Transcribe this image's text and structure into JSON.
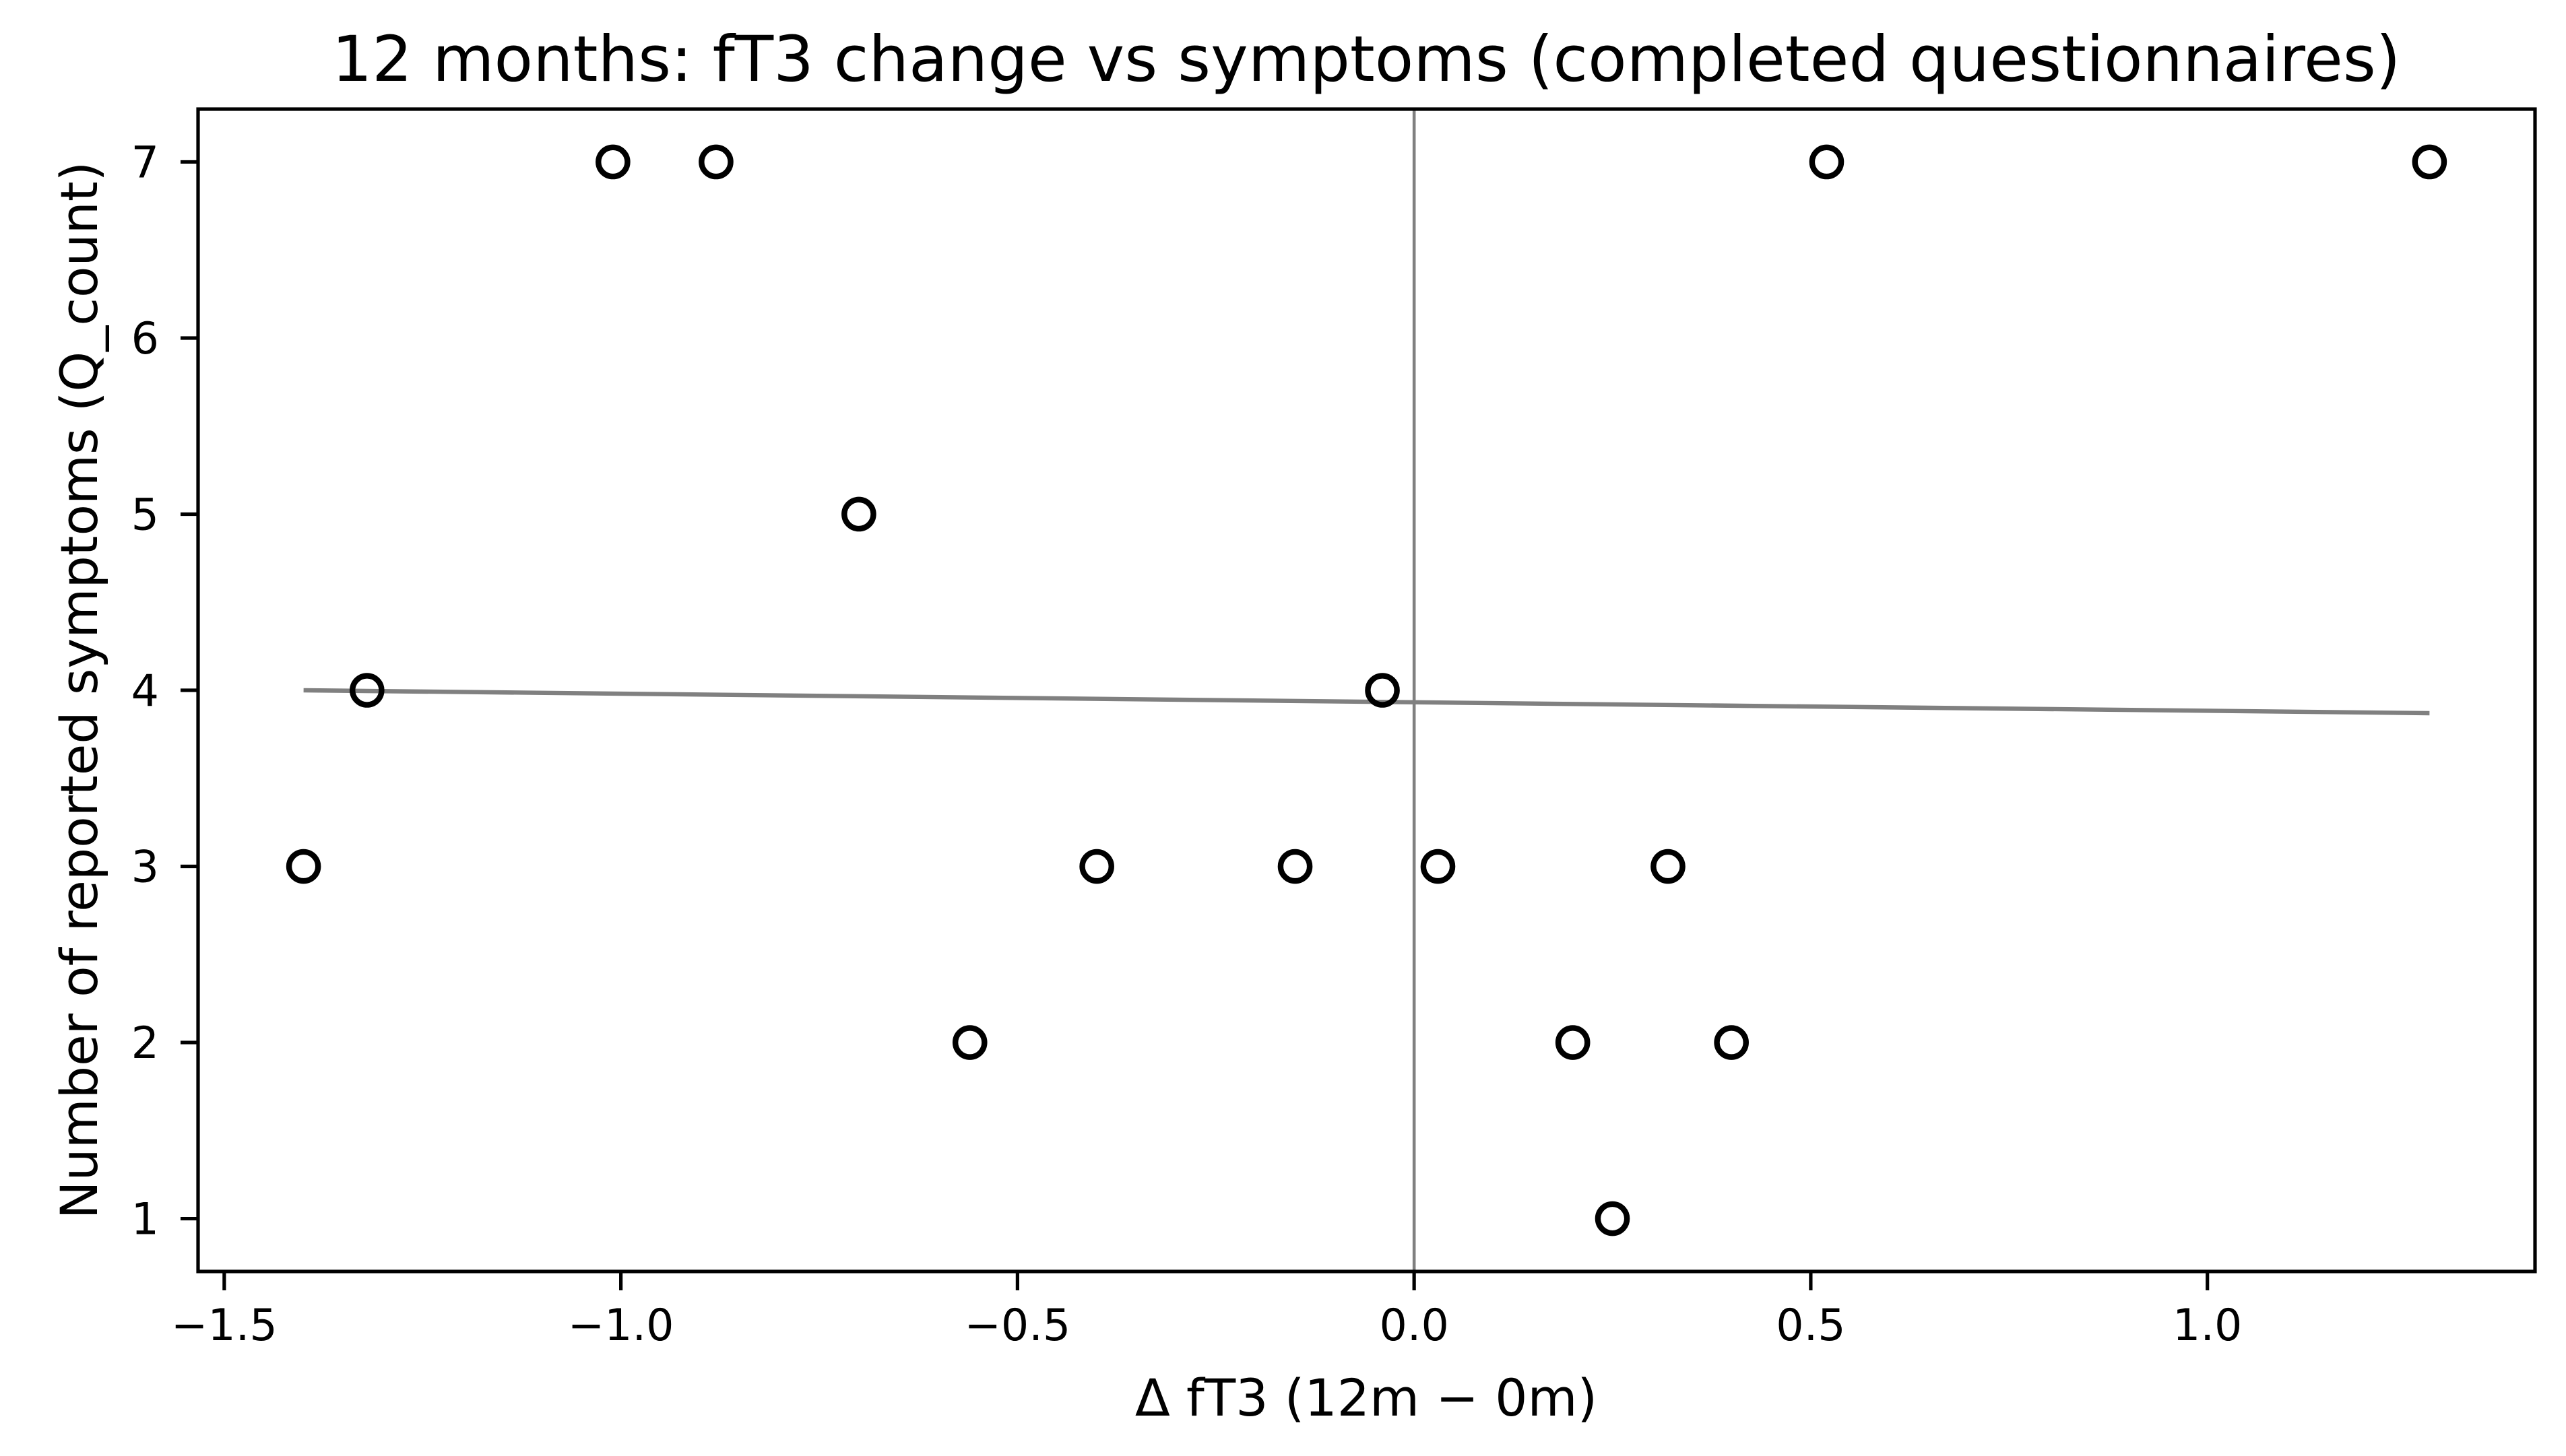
{
  "chart_data": {
    "type": "scatter",
    "title": "12 months: fT3 change vs symptoms (completed questionnaires)",
    "xlabel": "Δ fT3 (12m − 0m)",
    "ylabel": "Number of reported symptoms (Q_count)",
    "points": [
      [
        -1.4,
        3
      ],
      [
        -1.32,
        4
      ],
      [
        -1.01,
        7
      ],
      [
        -0.88,
        7
      ],
      [
        -0.7,
        5
      ],
      [
        -0.56,
        2
      ],
      [
        -0.4,
        3
      ],
      [
        -0.15,
        3
      ],
      [
        -0.04,
        4
      ],
      [
        0.03,
        3
      ],
      [
        0.2,
        2
      ],
      [
        0.25,
        1
      ],
      [
        0.32,
        3
      ],
      [
        0.4,
        2
      ],
      [
        0.52,
        7
      ],
      [
        1.28,
        7
      ]
    ],
    "trend_line": {
      "x": [
        -1.4,
        1.28
      ],
      "y": [
        4.0,
        3.87
      ]
    },
    "vline_x": 0.0,
    "xlim": [
      -1.533,
      1.413
    ],
    "ylim": [
      0.7,
      7.3
    ],
    "xticks": {
      "values": [
        -1.5,
        -1.0,
        -0.5,
        0.0,
        0.5,
        1.0
      ],
      "labels": [
        "−1.5",
        "−1.0",
        "−0.5",
        "0.0",
        "0.5",
        "1.0"
      ]
    },
    "yticks": {
      "values": [
        1,
        2,
        3,
        4,
        5,
        6,
        7
      ],
      "labels": [
        "1",
        "2",
        "3",
        "4",
        "5",
        "6",
        "7"
      ]
    },
    "marker": {
      "shape": "open-circle",
      "edge_color": "#000000"
    },
    "colors": {
      "line_gray": "#808080",
      "axis_black": "#000000",
      "background": "#ffffff"
    },
    "grid": false,
    "legend": null
  }
}
